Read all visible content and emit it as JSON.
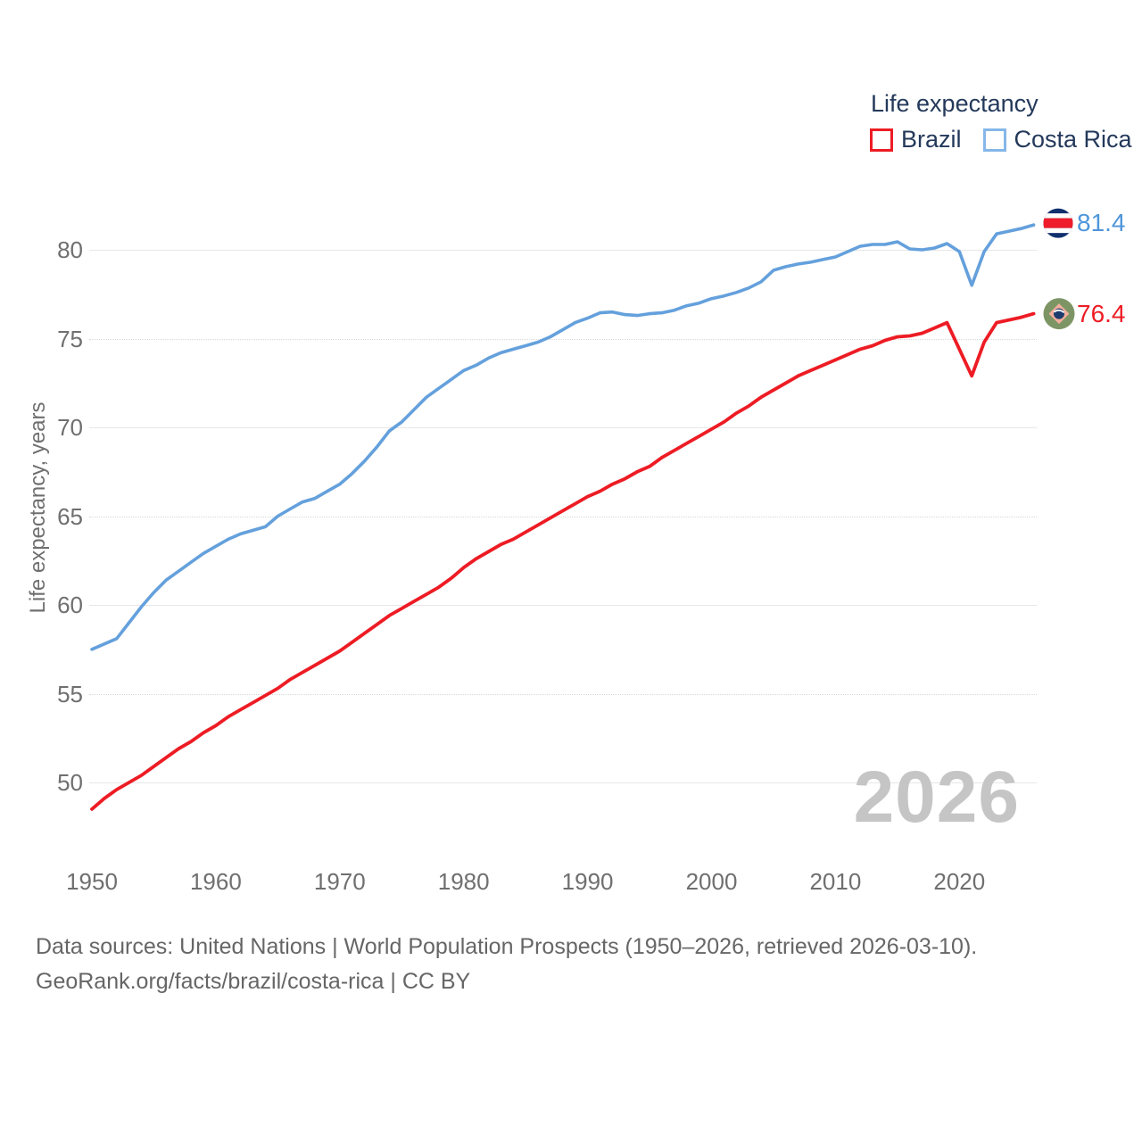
{
  "legend": {
    "title": "Life expectancy",
    "series": [
      {
        "label": "Brazil",
        "swatch_color": "#ed1c24"
      },
      {
        "label": "Costa Rica",
        "swatch_color": "#85b7e8"
      }
    ]
  },
  "y_axis": {
    "title": "Life expectancy, years",
    "ticks": [
      50,
      55,
      60,
      65,
      70,
      75,
      80
    ]
  },
  "x_axis": {
    "ticks": [
      1950,
      1960,
      1970,
      1980,
      1990,
      2000,
      2010,
      2020
    ]
  },
  "end_labels": [
    {
      "series": "Costa Rica",
      "value": "81.4",
      "color": "#4e95da",
      "flag": "costa-rica-flag"
    },
    {
      "series": "Brazil",
      "value": "76.4",
      "color": "#ed1c24",
      "flag": "brazil-flag"
    }
  ],
  "watermark": "2026",
  "footer": {
    "line1": "Data sources: United Nations | World Population Prospects (1950–2026, retrieved 2026-03-10).",
    "line2": "GeoRank.org/facts/brazil/costa-rica | CC BY"
  },
  "chart_data": {
    "type": "line",
    "title": "Life expectancy",
    "ylabel": "Life expectancy, years",
    "xlabel": "",
    "x_start": 1950,
    "x_end": 2026,
    "ylim": [
      46.5,
      83
    ],
    "grid": true,
    "legend_position": "top-right",
    "series": [
      {
        "name": "Costa Rica",
        "color": "#64a0dc",
        "end_value": 81.4,
        "values": [
          57.5,
          57.8,
          58.1,
          59.0,
          59.9,
          60.7,
          61.4,
          61.9,
          62.4,
          62.9,
          63.3,
          63.7,
          64.0,
          64.2,
          64.4,
          65.0,
          65.4,
          65.8,
          66.0,
          66.4,
          66.8,
          67.4,
          68.1,
          68.9,
          69.8,
          70.3,
          71.0,
          71.7,
          72.2,
          72.7,
          73.2,
          73.5,
          73.9,
          74.2,
          74.4,
          74.6,
          74.8,
          75.1,
          75.5,
          75.9,
          76.15,
          76.45,
          76.5,
          76.35,
          76.3,
          76.4,
          76.45,
          76.6,
          76.85,
          77.0,
          77.25,
          77.4,
          77.6,
          77.85,
          78.2,
          78.85,
          79.05,
          79.2,
          79.3,
          79.45,
          79.6,
          79.9,
          80.2,
          80.3,
          80.3,
          80.45,
          80.05,
          80.0,
          80.1,
          80.35,
          79.9,
          78.0,
          79.9,
          80.9,
          81.05,
          81.2,
          81.4
        ]
      },
      {
        "name": "Brazil",
        "color": "#ed1c24",
        "end_value": 76.4,
        "values": [
          48.5,
          49.1,
          49.6,
          50.0,
          50.4,
          50.9,
          51.4,
          51.9,
          52.3,
          52.8,
          53.2,
          53.7,
          54.1,
          54.5,
          54.9,
          55.3,
          55.8,
          56.2,
          56.6,
          57.0,
          57.4,
          57.9,
          58.4,
          58.9,
          59.4,
          59.8,
          60.2,
          60.6,
          61.0,
          61.5,
          62.1,
          62.6,
          63.0,
          63.4,
          63.7,
          64.1,
          64.5,
          64.9,
          65.3,
          65.7,
          66.1,
          66.4,
          66.8,
          67.1,
          67.5,
          67.8,
          68.3,
          68.7,
          69.1,
          69.5,
          69.9,
          70.3,
          70.8,
          71.2,
          71.7,
          72.1,
          72.5,
          72.9,
          73.2,
          73.5,
          73.8,
          74.1,
          74.4,
          74.6,
          74.9,
          75.1,
          75.15,
          75.3,
          75.6,
          75.9,
          74.4,
          72.9,
          74.8,
          75.9,
          76.05,
          76.2,
          76.4
        ]
      }
    ]
  }
}
